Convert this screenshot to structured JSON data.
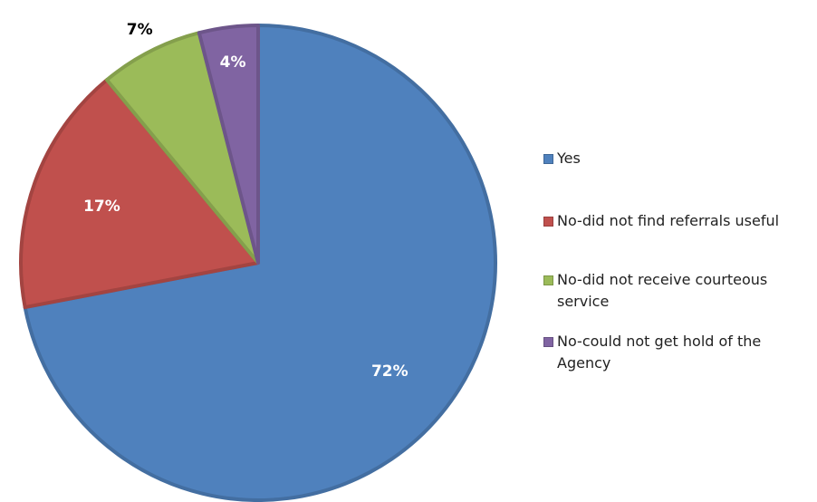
{
  "chart_data": {
    "type": "pie",
    "title": "",
    "labels": [
      "Yes",
      "No-did not find referrals useful",
      "No-did not receive courteous service",
      "No-could not get hold of the Agency"
    ],
    "values": [
      72,
      17,
      7,
      4
    ],
    "data_labels": [
      "72%",
      "17%",
      "7%",
      "4%"
    ],
    "colors": [
      "#4F81BD",
      "#C0504D",
      "#9BBB59",
      "#8064A2"
    ],
    "legend_position": "right",
    "start_angle": "12 o'clock",
    "direction": "clockwise"
  },
  "legend": {
    "items": [
      {
        "line1": "Yes",
        "line2": ""
      },
      {
        "line1": "No-did not find referrals useful",
        "line2": ""
      },
      {
        "line1": "No-did not receive courteous",
        "line2": "service"
      },
      {
        "line1": "No-could not get hold of the",
        "line2": "Agency"
      }
    ]
  }
}
